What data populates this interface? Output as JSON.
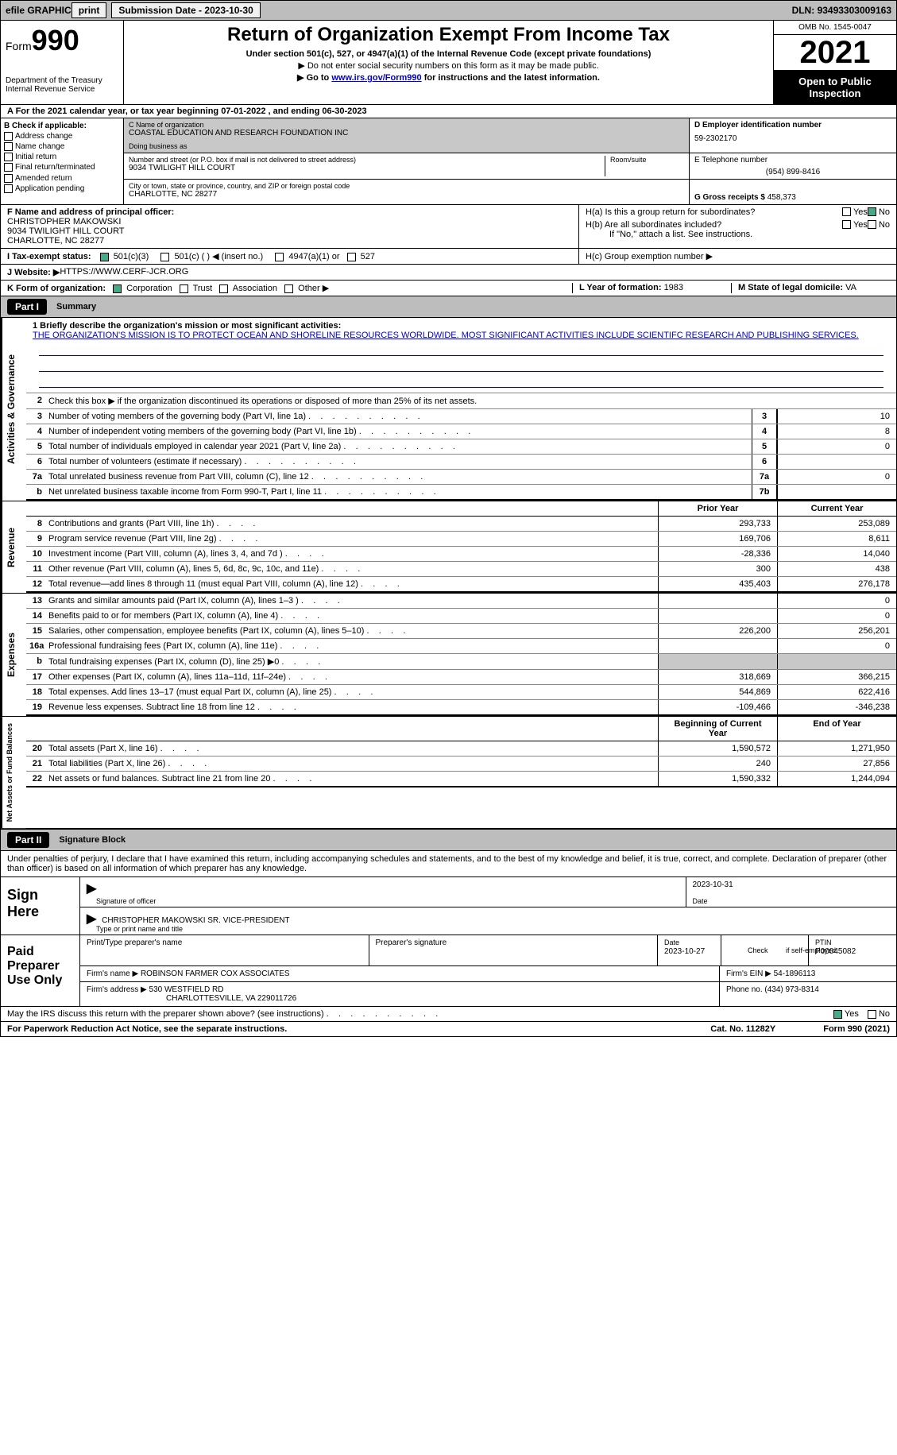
{
  "topbar": {
    "efile": "efile GRAPHIC",
    "print": "print",
    "subdate_label": "Submission Date - ",
    "subdate": "2023-10-30",
    "dln_label": "DLN: ",
    "dln": "93493303009163"
  },
  "header": {
    "form_label": "Form",
    "form_num": "990",
    "dept": "Department of the Treasury\nInternal Revenue Service",
    "title": "Return of Organization Exempt From Income Tax",
    "sub1": "Under section 501(c), 527, or 4947(a)(1) of the Internal Revenue Code (except private foundations)",
    "sub2": "▶ Do not enter social security numbers on this form as it may be made public.",
    "sub3_pre": "▶ Go to ",
    "sub3_link": "www.irs.gov/Form990",
    "sub3_post": " for instructions and the latest information.",
    "omb": "OMB No. 1545-0047",
    "year": "2021",
    "open": "Open to Public Inspection"
  },
  "row_a": "A For the 2021 calendar year, or tax year beginning 07-01-2022    , and ending 06-30-2023",
  "col_b": {
    "hdr": "B Check if applicable:",
    "items": [
      "Address change",
      "Name change",
      "Initial return",
      "Final return/terminated",
      "Amended return",
      "Application pending"
    ]
  },
  "org": {
    "c_lbl": "C Name of organization",
    "c_name": "COASTAL EDUCATION AND RESEARCH FOUNDATION INC",
    "dba_lbl": "Doing business as",
    "dba": "",
    "addr_lbl": "Number and street (or P.O. box if mail is not delivered to street address)",
    "room_lbl": "Room/suite",
    "addr": "9034 TWILIGHT HILL COURT",
    "city_lbl": "City or town, state or province, country, and ZIP or foreign postal code",
    "city": "CHARLOTTE, NC   28277",
    "d_lbl": "D Employer identification number",
    "d_val": "59-2302170",
    "e_lbl": "E Telephone number",
    "e_val": "(954) 899-8416",
    "g_lbl": "G Gross receipts $",
    "g_val": "458,373"
  },
  "fblock": {
    "f_lbl": "F  Name and address of principal officer:",
    "f_name": "CHRISTOPHER MAKOWSKI",
    "f_addr1": "9034 TWILIGHT HILL COURT",
    "f_addr2": "CHARLOTTE, NC   28277",
    "ha": "H(a)  Is this a group return for subordinates?",
    "hb": "H(b)  Are all subordinates included?",
    "hb_note": "If \"No,\" attach a list. See instructions.",
    "hc": "H(c)  Group exemption number ▶",
    "i_lbl": "I    Tax-exempt status:",
    "i_501c3": "501(c)(3)",
    "i_501c": "501(c) (   ) ◀ (insert no.)",
    "i_4947": "4947(a)(1) or",
    "i_527": "527",
    "j_lbl": "J   Website: ▶",
    "j_val": "  HTTPS://WWW.CERF-JCR.ORG",
    "k_lbl": "K Form of organization:",
    "k_corp": "Corporation",
    "k_trust": "Trust",
    "k_assoc": "Association",
    "k_other": "Other ▶",
    "l_lbl": "L Year of formation: ",
    "l_val": "1983",
    "m_lbl": "M State of legal domicile: ",
    "m_val": "VA",
    "yes": "Yes",
    "no": "No"
  },
  "part1": {
    "hdr": "Part I",
    "title": "Summary",
    "tabs": {
      "ag": "Activities & Governance",
      "rev": "Revenue",
      "exp": "Expenses",
      "nab": "Net Assets or Fund Balances"
    },
    "l1_lbl": "1   Briefly describe the organization's mission or most significant activities:",
    "l1_val": "THE ORGANIZATION'S MISSION IS TO PROTECT OCEAN AND SHORELINE RESOURCES WORLDWIDE. MOST SIGNIFICANT ACTIVITIES INCLUDE SCIENTIFC RESEARCH AND PUBLISHING SERVICES.",
    "l2": "Check this box ▶        if the organization discontinued its operations or disposed of more than 25% of its net assets.",
    "lines_ag": [
      {
        "n": "3",
        "t": "Number of voting members of the governing body (Part VI, line 1a)",
        "box": "3",
        "v": "10"
      },
      {
        "n": "4",
        "t": "Number of independent voting members of the governing body (Part VI, line 1b)",
        "box": "4",
        "v": "8"
      },
      {
        "n": "5",
        "t": "Total number of individuals employed in calendar year 2021 (Part V, line 2a)",
        "box": "5",
        "v": "0"
      },
      {
        "n": "6",
        "t": "Total number of volunteers (estimate if necessary)",
        "box": "6",
        "v": ""
      },
      {
        "n": "7a",
        "t": "Total unrelated business revenue from Part VIII, column (C), line 12",
        "box": "7a",
        "v": "0"
      },
      {
        "n": "b",
        "t": "Net unrelated business taxable income from Form 990-T, Part I, line 11",
        "box": "7b",
        "v": ""
      }
    ],
    "col_prior": "Prior Year",
    "col_curr": "Current Year",
    "col_beg": "Beginning of Current Year",
    "col_end": "End of Year",
    "rev": [
      {
        "n": "8",
        "t": "Contributions and grants (Part VIII, line 1h)",
        "p": "293,733",
        "c": "253,089"
      },
      {
        "n": "9",
        "t": "Program service revenue (Part VIII, line 2g)",
        "p": "169,706",
        "c": "8,611"
      },
      {
        "n": "10",
        "t": "Investment income (Part VIII, column (A), lines 3, 4, and 7d )",
        "p": "-28,336",
        "c": "14,040"
      },
      {
        "n": "11",
        "t": "Other revenue (Part VIII, column (A), lines 5, 6d, 8c, 9c, 10c, and 11e)",
        "p": "300",
        "c": "438"
      },
      {
        "n": "12",
        "t": "Total revenue—add lines 8 through 11 (must equal Part VIII, column (A), line 12)",
        "p": "435,403",
        "c": "276,178"
      }
    ],
    "exp": [
      {
        "n": "13",
        "t": "Grants and similar amounts paid (Part IX, column (A), lines 1–3 )",
        "p": "",
        "c": "0"
      },
      {
        "n": "14",
        "t": "Benefits paid to or for members (Part IX, column (A), line 4)",
        "p": "",
        "c": "0"
      },
      {
        "n": "15",
        "t": "Salaries, other compensation, employee benefits (Part IX, column (A), lines 5–10)",
        "p": "226,200",
        "c": "256,201"
      },
      {
        "n": "16a",
        "t": "Professional fundraising fees (Part IX, column (A), line 11e)",
        "p": "",
        "c": "0"
      },
      {
        "n": "b",
        "t": "Total fundraising expenses (Part IX, column (D), line 25) ▶0",
        "p": "grey",
        "c": "grey"
      },
      {
        "n": "17",
        "t": "Other expenses (Part IX, column (A), lines 11a–11d, 11f–24e)",
        "p": "318,669",
        "c": "366,215"
      },
      {
        "n": "18",
        "t": "Total expenses. Add lines 13–17 (must equal Part IX, column (A), line 25)",
        "p": "544,869",
        "c": "622,416"
      },
      {
        "n": "19",
        "t": "Revenue less expenses. Subtract line 18 from line 12",
        "p": "-109,466",
        "c": "-346,238"
      }
    ],
    "nab": [
      {
        "n": "20",
        "t": "Total assets (Part X, line 16)",
        "p": "1,590,572",
        "c": "1,271,950"
      },
      {
        "n": "21",
        "t": "Total liabilities (Part X, line 26)",
        "p": "240",
        "c": "27,856"
      },
      {
        "n": "22",
        "t": "Net assets or fund balances. Subtract line 21 from line 20",
        "p": "1,590,332",
        "c": "1,244,094"
      }
    ]
  },
  "part2": {
    "hdr": "Part II",
    "title": "Signature Block",
    "intro": "Under penalties of perjury, I declare that I have examined this return, including accompanying schedules and statements, and to the best of my knowledge and belief, it is true, correct, and complete. Declaration of preparer (other than officer) is based on all information of which preparer has any knowledge.",
    "sign_here": "Sign Here",
    "sig_officer": "Signature of officer",
    "sig_date": "2023-10-31",
    "date_lbl": "Date",
    "officer_name": "CHRISTOPHER MAKOWSKI  SR. VICE-PRESIDENT",
    "officer_lbl": "Type or print name and title",
    "paid": "Paid Preparer Use Only",
    "prep_name_lbl": "Print/Type preparer's name",
    "prep_sig_lbl": "Preparer's signature",
    "prep_date_lbl": "Date",
    "prep_date": "2023-10-27",
    "self_emp": "Check         if self-employed",
    "ptin_lbl": "PTIN",
    "ptin": "P00045082",
    "firm_name_lbl": "Firm's name      ▶",
    "firm_name": "ROBINSON FARMER COX ASSOCIATES",
    "firm_ein_lbl": "Firm's EIN ▶",
    "firm_ein": "54-1896113",
    "firm_addr_lbl": "Firm's address ▶",
    "firm_addr1": "530 WESTFIELD RD",
    "firm_addr2": "CHARLOTTESVILLE, VA   229011726",
    "phone_lbl": "Phone no. ",
    "phone": "(434) 973-8314",
    "may_irs": "May the IRS discuss this return with the preparer shown above? (see instructions)"
  },
  "footer": {
    "pra": "For Paperwork Reduction Act Notice, see the separate instructions.",
    "cat": "Cat. No. 11282Y",
    "form": "Form 990 (2021)"
  }
}
